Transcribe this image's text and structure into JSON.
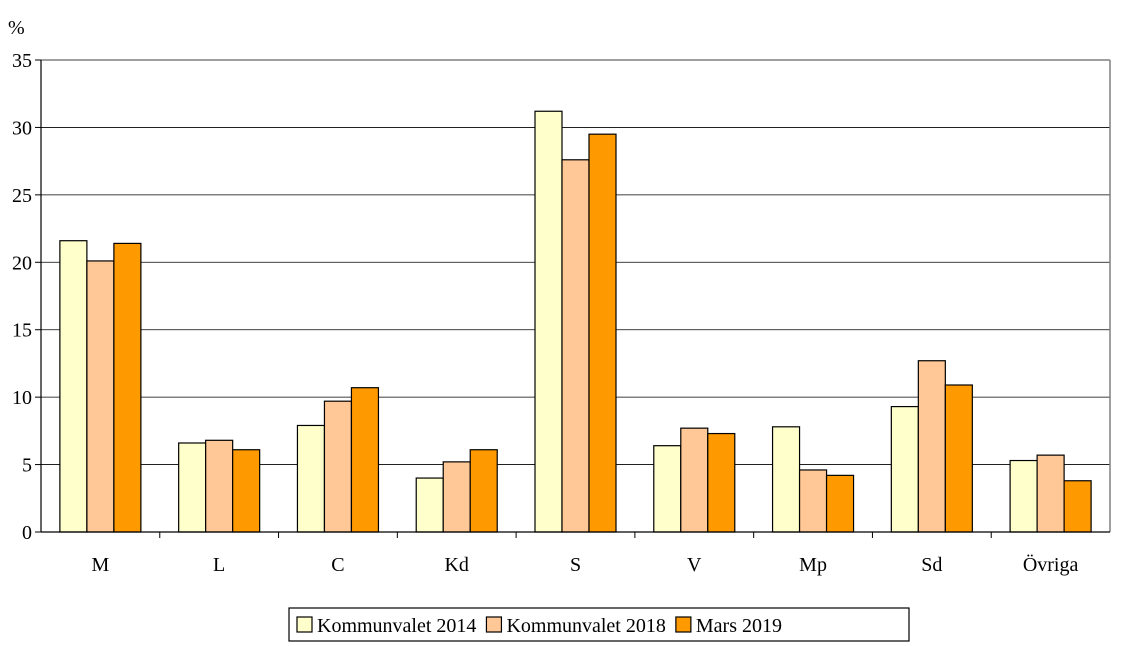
{
  "chart_data": {
    "type": "bar",
    "ylabel": "%",
    "ylim": [
      0,
      35
    ],
    "yticks": [
      0,
      5,
      10,
      15,
      20,
      25,
      30,
      35
    ],
    "grid": true,
    "legend_position": "bottom",
    "categories": [
      "M",
      "L",
      "C",
      "Kd",
      "S",
      "V",
      "Mp",
      "Sd",
      "Övriga"
    ],
    "series": [
      {
        "name": "Kommunvalet 2014",
        "color": "#ffffcc",
        "values": [
          21.6,
          6.6,
          7.9,
          4.0,
          31.2,
          6.4,
          7.8,
          9.3,
          5.3
        ]
      },
      {
        "name": "Kommunvalet 2018",
        "color": "#ffc896",
        "values": [
          20.1,
          6.8,
          9.7,
          5.2,
          27.6,
          7.7,
          4.6,
          12.7,
          5.7
        ]
      },
      {
        "name": "Mars 2019",
        "color": "#ff9900",
        "values": [
          21.4,
          6.1,
          10.7,
          6.1,
          29.5,
          7.3,
          4.2,
          10.9,
          3.8
        ]
      }
    ]
  }
}
